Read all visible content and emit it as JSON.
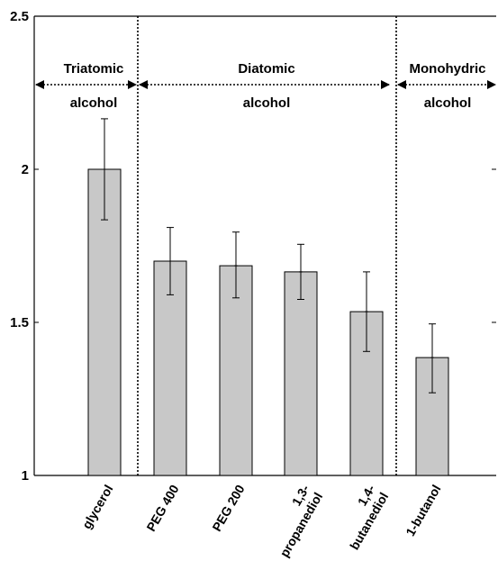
{
  "chart_data": {
    "type": "bar",
    "title": "",
    "xlabel": "",
    "ylabel": "",
    "ylim": [
      1,
      2.5
    ],
    "yticks": [
      "1",
      "1.5",
      "2",
      "2.5"
    ],
    "categories": [
      [
        "glycerol"
      ],
      [
        "PEG 400"
      ],
      [
        "PEG 200"
      ],
      [
        "1,3-",
        "propanediol"
      ],
      [
        "1,4-",
        "butanediol"
      ],
      [
        "1-butanol"
      ]
    ],
    "values": [
      2.0,
      1.7,
      1.685,
      1.665,
      1.535,
      1.385
    ],
    "error_low": [
      1.835,
      1.59,
      1.58,
      1.575,
      1.405,
      1.27
    ],
    "error_high": [
      2.165,
      1.81,
      1.795,
      1.755,
      1.665,
      1.495
    ],
    "bar_color": "#c8c8c8",
    "grid": false,
    "groups": [
      {
        "lines": [
          "Triatomic",
          "alcohol"
        ],
        "categories": [
          0
        ]
      },
      {
        "lines": [
          "Diatomic",
          "alcohol"
        ],
        "categories": [
          1,
          2,
          3,
          4
        ]
      },
      {
        "lines": [
          "Monohydric",
          "alcohol"
        ],
        "categories": [
          5
        ]
      }
    ]
  }
}
